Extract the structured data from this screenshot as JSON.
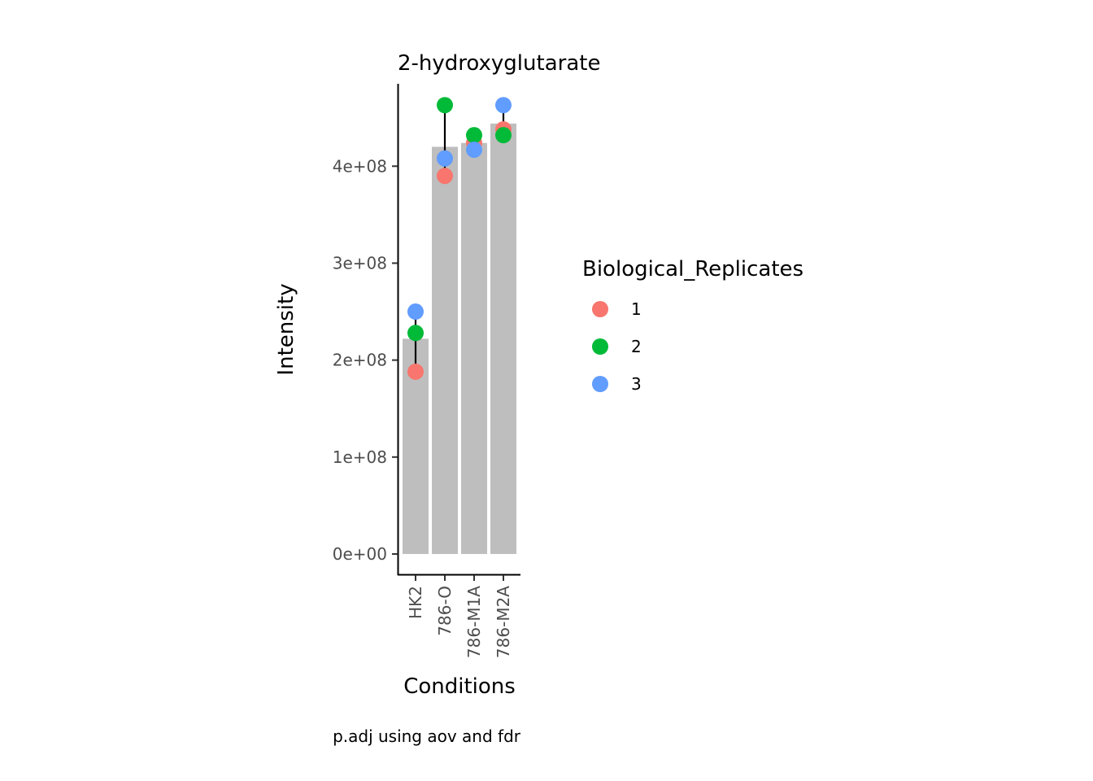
{
  "chart_data": {
    "type": "bar",
    "title": "2-hydroxyglutarate",
    "xlabel": "Conditions",
    "ylabel": "Intensity",
    "caption": "p.adj using  aov and fdr",
    "categories": [
      "HK2",
      "786-O",
      "786-M1A",
      "786-M2A"
    ],
    "bar_values": [
      222000000,
      420000000,
      424000000,
      444000000
    ],
    "error_bars": [
      {
        "low": 196000000,
        "high": 248000000
      },
      {
        "low": 382000000,
        "high": 462000000
      },
      {
        "low": 418000000,
        "high": 432000000
      },
      {
        "low": 426000000,
        "high": 462000000
      }
    ],
    "series": [
      {
        "name": "1",
        "color": "#F8766D",
        "values": [
          188000000,
          390000000,
          424000000,
          438000000
        ]
      },
      {
        "name": "2",
        "color": "#00BA38",
        "values": [
          228000000,
          463000000,
          432000000,
          432000000
        ]
      },
      {
        "name": "3",
        "color": "#619CFF",
        "values": [
          250000000,
          408000000,
          417000000,
          463000000
        ]
      }
    ],
    "ylim": [
      -21000000,
      485000000
    ],
    "yticks": [
      0,
      100000000,
      200000000,
      300000000,
      400000000
    ],
    "ytick_labels": [
      "0e+00",
      "1e+08",
      "2e+08",
      "3e+08",
      "4e+08"
    ],
    "bar_color": "#BEBEBE",
    "legend": {
      "title": "Biological_Replicates",
      "position": "right"
    },
    "grid": false
  }
}
